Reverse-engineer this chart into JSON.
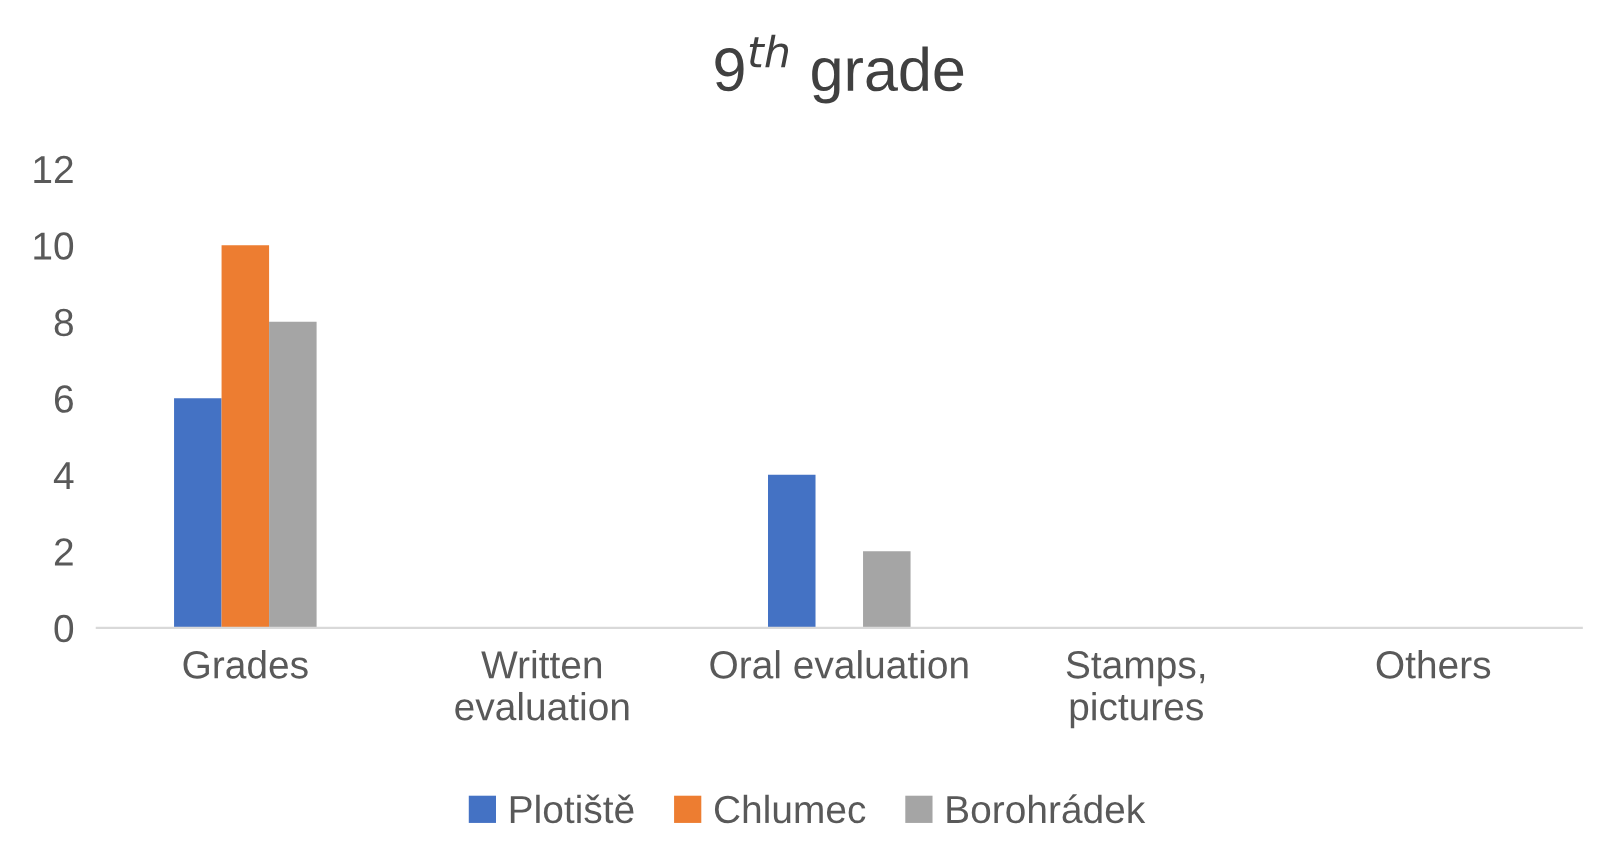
{
  "chart_data": {
    "type": "bar",
    "title": "9$^{th}$ grade",
    "categories": [
      "Grades",
      "Written\nevaluation",
      "Oral evaluation",
      "Stamps,\npictures",
      "Others"
    ],
    "series": [
      {
        "name": "Plotiště",
        "color": "#4472c4",
        "values": [
          6,
          0,
          4,
          0,
          0
        ]
      },
      {
        "name": "Chlumec",
        "color": "#ed7d31",
        "values": [
          10,
          0,
          0,
          0,
          0
        ]
      },
      {
        "name": "Borohrádek",
        "color": "#a5a5a5",
        "values": [
          8,
          0,
          2,
          0,
          0
        ]
      }
    ],
    "ylim": [
      0,
      12
    ],
    "yticks": [
      0,
      2,
      4,
      6,
      8,
      10,
      12
    ],
    "grid": false,
    "legend": "bottom"
  }
}
